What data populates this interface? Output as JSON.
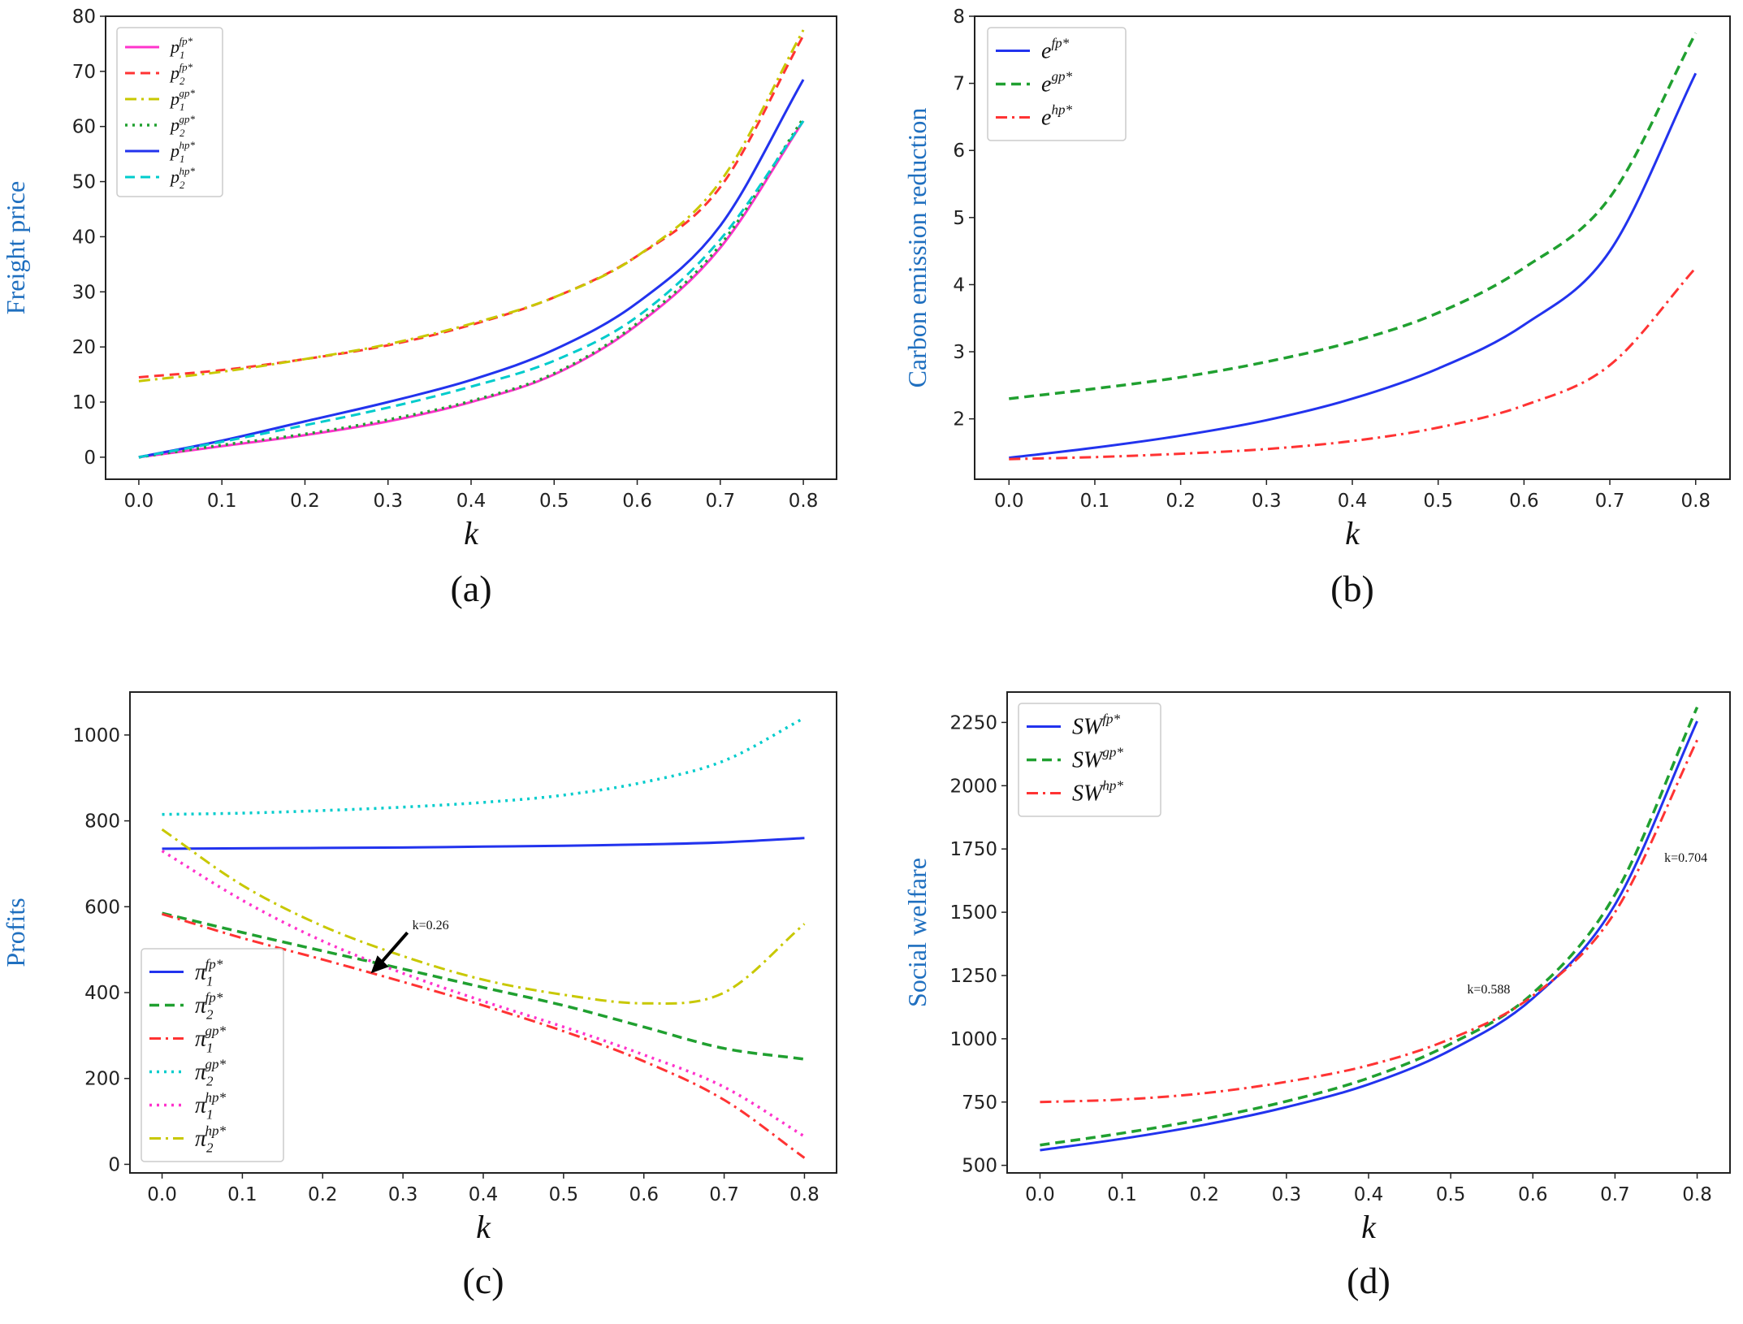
{
  "chart_data": [
    {
      "type": "line",
      "panel": "a",
      "caption": "(a)",
      "xlabel": "k",
      "ylabel": "Freight price",
      "xlim": [
        -0.04,
        0.84
      ],
      "ylim": [
        -4,
        80
      ],
      "xticks": [
        0.0,
        0.1,
        0.2,
        0.3,
        0.4,
        0.5,
        0.6,
        0.7,
        0.8
      ],
      "xtick_labels": [
        "0.0",
        "0.1",
        "0.2",
        "0.3",
        "0.4",
        "0.5",
        "0.6",
        "0.7",
        "0.8"
      ],
      "yticks": [
        0,
        10,
        20,
        30,
        40,
        50,
        60,
        70,
        80
      ],
      "ytick_labels": [
        "0",
        "10",
        "20",
        "30",
        "40",
        "50",
        "60",
        "70",
        "80"
      ],
      "legend_position": "upper-left",
      "legend_size": 22,
      "x": [
        0.0,
        0.1,
        0.2,
        0.3,
        0.4,
        0.5,
        0.6,
        0.7,
        0.8
      ],
      "series": [
        {
          "name": "p1fp*",
          "base": "p",
          "sub": "1",
          "sup": "fp*",
          "color": "#ff33cc",
          "dash": "",
          "width": 3,
          "values": [
            0,
            2,
            4,
            6.5,
            10,
            15,
            24,
            38,
            61
          ]
        },
        {
          "name": "p2fp*",
          "base": "p",
          "sub": "2",
          "sup": "fp*",
          "color": "#ff3333",
          "dash": "12,7",
          "width": 3,
          "values": [
            14.5,
            15.8,
            17.8,
            20.3,
            24,
            29,
            36.5,
            49,
            76.5
          ]
        },
        {
          "name": "p1gp*",
          "base": "p",
          "sub": "1",
          "sup": "gp*",
          "color": "#c8c800",
          "dash": "14,6,3,6",
          "width": 3,
          "values": [
            13.8,
            15.5,
            17.8,
            20.5,
            24.2,
            29,
            36.5,
            50,
            77.5
          ]
        },
        {
          "name": "p2gp*",
          "base": "p",
          "sub": "2",
          "sup": "gp*",
          "color": "#20a030",
          "dash": "3,6",
          "width": 3.5,
          "values": [
            0,
            2.2,
            4.2,
            6.8,
            10.2,
            15.2,
            24.3,
            38.5,
            61.5
          ]
        },
        {
          "name": "p1hp*",
          "base": "p",
          "sub": "1",
          "sup": "hp*",
          "color": "#2233ee",
          "dash": "",
          "width": 3,
          "values": [
            0,
            3,
            6.5,
            10,
            14,
            19.5,
            28,
            42,
            68.5
          ]
        },
        {
          "name": "p2hp*",
          "base": "p",
          "sub": "2",
          "sup": "hp*",
          "color": "#00cccc",
          "dash": "12,7",
          "width": 3,
          "values": [
            0,
            2.8,
            5.8,
            9,
            12.8,
            17.5,
            25.5,
            39.5,
            61
          ]
        }
      ]
    },
    {
      "type": "line",
      "panel": "b",
      "caption": "(b)",
      "xlabel": "k",
      "ylabel": "Carbon emission reduction",
      "xlim": [
        -0.04,
        0.84
      ],
      "ylim": [
        1.1,
        8.0
      ],
      "xticks": [
        0.0,
        0.1,
        0.2,
        0.3,
        0.4,
        0.5,
        0.6,
        0.7,
        0.8
      ],
      "xtick_labels": [
        "0.0",
        "0.1",
        "0.2",
        "0.3",
        "0.4",
        "0.5",
        "0.6",
        "0.7",
        "0.8"
      ],
      "yticks": [
        2,
        3,
        4,
        5,
        6,
        7,
        8
      ],
      "ytick_labels": [
        "2",
        "3",
        "4",
        "5",
        "6",
        "7",
        "8"
      ],
      "legend_position": "upper-left",
      "legend_size": 28,
      "x": [
        0.0,
        0.1,
        0.2,
        0.3,
        0.4,
        0.5,
        0.6,
        0.7,
        0.8
      ],
      "series": [
        {
          "name": "efp*",
          "base": "e",
          "sub": "",
          "sup": "fp*",
          "color": "#2233ee",
          "dash": "",
          "width": 3,
          "values": [
            1.42,
            1.57,
            1.75,
            1.98,
            2.3,
            2.75,
            3.4,
            4.5,
            7.15
          ]
        },
        {
          "name": "egp*",
          "base": "e",
          "sub": "",
          "sup": "gp*",
          "color": "#20a030",
          "dash": "12,7",
          "width": 3.5,
          "values": [
            2.3,
            2.45,
            2.62,
            2.85,
            3.15,
            3.58,
            4.25,
            5.3,
            7.75
          ]
        },
        {
          "name": "ehp*",
          "base": "e",
          "sub": "",
          "sup": "hp*",
          "color": "#ff3333",
          "dash": "14,6,3,6",
          "width": 3,
          "values": [
            1.4,
            1.43,
            1.48,
            1.55,
            1.67,
            1.87,
            2.2,
            2.8,
            4.25
          ]
        }
      ]
    },
    {
      "type": "line",
      "panel": "c",
      "caption": "(c)",
      "xlabel": "k",
      "ylabel": "Profits",
      "xlim": [
        -0.04,
        0.84
      ],
      "ylim": [
        -20,
        1100
      ],
      "xticks": [
        0.0,
        0.1,
        0.2,
        0.3,
        0.4,
        0.5,
        0.6,
        0.7,
        0.8
      ],
      "xtick_labels": [
        "0.0",
        "0.1",
        "0.2",
        "0.3",
        "0.4",
        "0.5",
        "0.6",
        "0.7",
        "0.8"
      ],
      "yticks": [
        0,
        200,
        400,
        600,
        800,
        1000
      ],
      "ytick_labels": [
        "0",
        "200",
        "400",
        "600",
        "800",
        "1000"
      ],
      "legend_position": "lower-left",
      "legend_size": 28,
      "x": [
        0.0,
        0.1,
        0.2,
        0.3,
        0.4,
        0.5,
        0.6,
        0.7,
        0.8
      ],
      "series": [
        {
          "name": "π1fp*",
          "base": "π",
          "sub": "1",
          "sup": "fp*",
          "color": "#2233ee",
          "dash": "",
          "width": 3,
          "values": [
            735,
            736,
            737,
            738,
            740,
            742,
            745,
            750,
            760
          ]
        },
        {
          "name": "π2fp*",
          "base": "π",
          "sub": "2",
          "sup": "fp*",
          "color": "#20a030",
          "dash": "12,7",
          "width": 3.5,
          "values": [
            585,
            540,
            497,
            455,
            412,
            370,
            320,
            270,
            245
          ]
        },
        {
          "name": "π1gp*",
          "base": "π",
          "sub": "1",
          "sup": "gp*",
          "color": "#ff3333",
          "dash": "14,6,3,6",
          "width": 3,
          "values": [
            583,
            527,
            477,
            425,
            370,
            310,
            240,
            150,
            15
          ]
        },
        {
          "name": "π2gp*",
          "base": "π",
          "sub": "2",
          "sup": "gp*",
          "color": "#00cccc",
          "dash": "3,6",
          "width": 3.5,
          "values": [
            815,
            818,
            824,
            832,
            843,
            860,
            890,
            940,
            1040
          ]
        },
        {
          "name": "π1hp*",
          "base": "π",
          "sub": "1",
          "sup": "hp*",
          "color": "#ff33cc",
          "dash": "3,6",
          "width": 3.5,
          "values": [
            730,
            615,
            520,
            445,
            380,
            320,
            255,
            180,
            65
          ]
        },
        {
          "name": "π2hp*",
          "base": "π",
          "sub": "2",
          "sup": "hp*",
          "color": "#c8c800",
          "dash": "14,6,3,6",
          "width": 3,
          "values": [
            780,
            650,
            555,
            485,
            430,
            395,
            375,
            400,
            560
          ]
        }
      ],
      "annotations": [
        {
          "text": "k=0.26",
          "x": 0.26,
          "y": 445,
          "arrow": true
        }
      ]
    },
    {
      "type": "line",
      "panel": "d",
      "caption": "(d)",
      "xlabel": "k",
      "ylabel": "Social welfare",
      "xlim": [
        -0.04,
        0.84
      ],
      "ylim": [
        470,
        2370
      ],
      "xticks": [
        0.0,
        0.1,
        0.2,
        0.3,
        0.4,
        0.5,
        0.6,
        0.7,
        0.8
      ],
      "xtick_labels": [
        "0.0",
        "0.1",
        "0.2",
        "0.3",
        "0.4",
        "0.5",
        "0.6",
        "0.7",
        "0.8"
      ],
      "yticks": [
        500,
        750,
        1000,
        1250,
        1500,
        1750,
        2000,
        2250
      ],
      "ytick_labels": [
        "500",
        "750",
        "1000",
        "1250",
        "1500",
        "1750",
        "2000",
        "2250"
      ],
      "legend_position": "upper-left",
      "legend_size": 28,
      "x": [
        0.0,
        0.1,
        0.2,
        0.3,
        0.4,
        0.5,
        0.6,
        0.7,
        0.8
      ],
      "series": [
        {
          "name": "SWfp*",
          "base": "SW",
          "sub": "",
          "sup": "fp*",
          "color": "#2233ee",
          "dash": "",
          "width": 3,
          "values": [
            560,
            605,
            660,
            730,
            820,
            955,
            1160,
            1530,
            2255
          ]
        },
        {
          "name": "SWgp*",
          "base": "SW",
          "sub": "",
          "sup": "gp*",
          "color": "#20a030",
          "dash": "12,7",
          "width": 3.5,
          "values": [
            580,
            627,
            683,
            753,
            845,
            980,
            1180,
            1570,
            2310
          ]
        },
        {
          "name": "SWhp*",
          "base": "SW",
          "sub": "",
          "sup": "hp*",
          "color": "#ff3333",
          "dash": "14,6,3,6",
          "width": 3,
          "values": [
            750,
            760,
            785,
            830,
            895,
            1000,
            1170,
            1500,
            2180
          ]
        }
      ],
      "annotations": [
        {
          "text": "k=0.588",
          "x": 0.52,
          "y": 1180,
          "arrow": false
        },
        {
          "text": "k=0.704",
          "x": 0.76,
          "y": 1700,
          "arrow": false
        }
      ]
    }
  ]
}
